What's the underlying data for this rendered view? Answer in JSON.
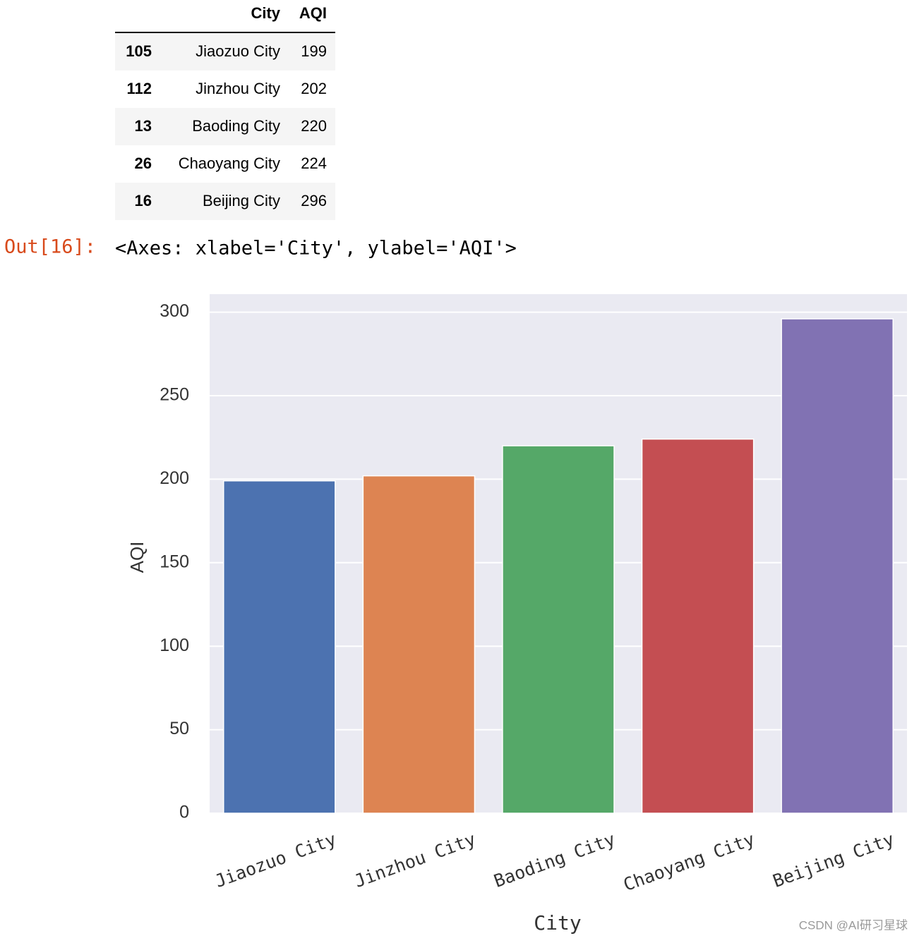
{
  "table": {
    "columns": [
      "City",
      "AQI"
    ],
    "rows": [
      [
        "105",
        "Jiaozuo City",
        199
      ],
      [
        "112",
        "Jinzhou City",
        202
      ],
      [
        "13",
        "Baoding City",
        220
      ],
      [
        "26",
        "Chaoyang City",
        224
      ],
      [
        "16",
        "Beijing City",
        296
      ]
    ]
  },
  "output": {
    "prompt": "Out[16]:",
    "text": "<Axes: xlabel='City', ylabel='AQI'>"
  },
  "chart_data": {
    "type": "bar",
    "x_label": "City",
    "y_label": "AQI",
    "categories": [
      "Jiaozuo City",
      "Jinzhou City",
      "Baoding City",
      "Chaoyang City",
      "Beijing City"
    ],
    "values": [
      199,
      202,
      220,
      224,
      296
    ],
    "colors": [
      "#4c72b0",
      "#dd8452",
      "#55a868",
      "#c44e52",
      "#8172b3"
    ],
    "ylim": [
      0,
      310.8
    ],
    "yticks": [
      0,
      50,
      100,
      150,
      200,
      250,
      300
    ],
    "grid": true
  },
  "watermark": "CSDN @AI研习星球"
}
